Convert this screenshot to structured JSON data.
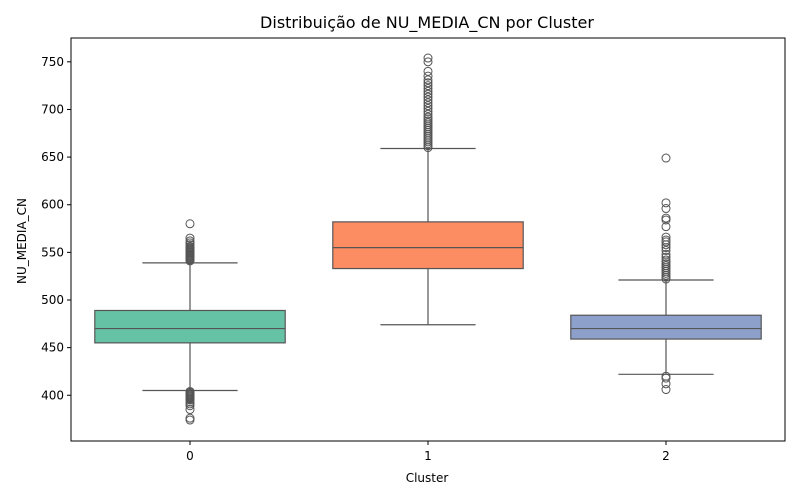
{
  "chart_data": {
    "type": "box",
    "title": "Distribuição de NU_MEDIA_CN por Cluster",
    "xlabel": "Cluster",
    "ylabel": "NU_MEDIA_CN",
    "categories": [
      "0",
      "1",
      "2"
    ],
    "yticks": [
      400,
      450,
      500,
      550,
      600,
      650,
      700,
      750
    ],
    "ylim": [
      352,
      775
    ],
    "grid": false,
    "boxes": [
      {
        "category": "0",
        "color": "#66c2a5",
        "q1": 455,
        "median": 470,
        "q3": 489,
        "whisker_low": 405,
        "whisker_high": 539,
        "outliers": [
          580,
          565,
          562,
          560,
          558,
          556,
          555,
          554,
          553,
          552,
          551,
          550,
          549,
          548,
          547,
          546,
          545,
          544,
          543,
          542,
          541,
          404,
          403,
          402,
          401,
          400,
          399,
          398,
          397,
          396,
          395,
          393,
          391,
          389,
          385,
          376,
          374
        ]
      },
      {
        "category": "1",
        "color": "#fc8d62",
        "q1": 533,
        "median": 555,
        "q3": 582,
        "whisker_low": 474,
        "whisker_high": 659,
        "outliers": [
          754,
          750,
          740,
          735,
          731,
          728,
          725,
          722,
          719,
          716,
          713,
          710,
          707,
          704,
          701,
          698,
          695,
          692,
          690,
          688,
          686,
          684,
          682,
          680,
          678,
          676,
          674,
          672,
          670,
          668,
          666,
          664,
          662,
          660
        ]
      },
      {
        "category": "2",
        "color": "#8da0cb",
        "q1": 459,
        "median": 470,
        "q3": 484,
        "whisker_low": 422,
        "whisker_high": 521,
        "outliers": [
          649,
          602,
          596,
          586,
          584,
          577,
          566,
          563,
          561,
          558,
          555,
          552,
          548,
          545,
          542,
          540,
          538,
          536,
          534,
          532,
          530,
          528,
          526,
          524,
          522,
          420,
          418,
          412,
          406
        ]
      }
    ]
  }
}
